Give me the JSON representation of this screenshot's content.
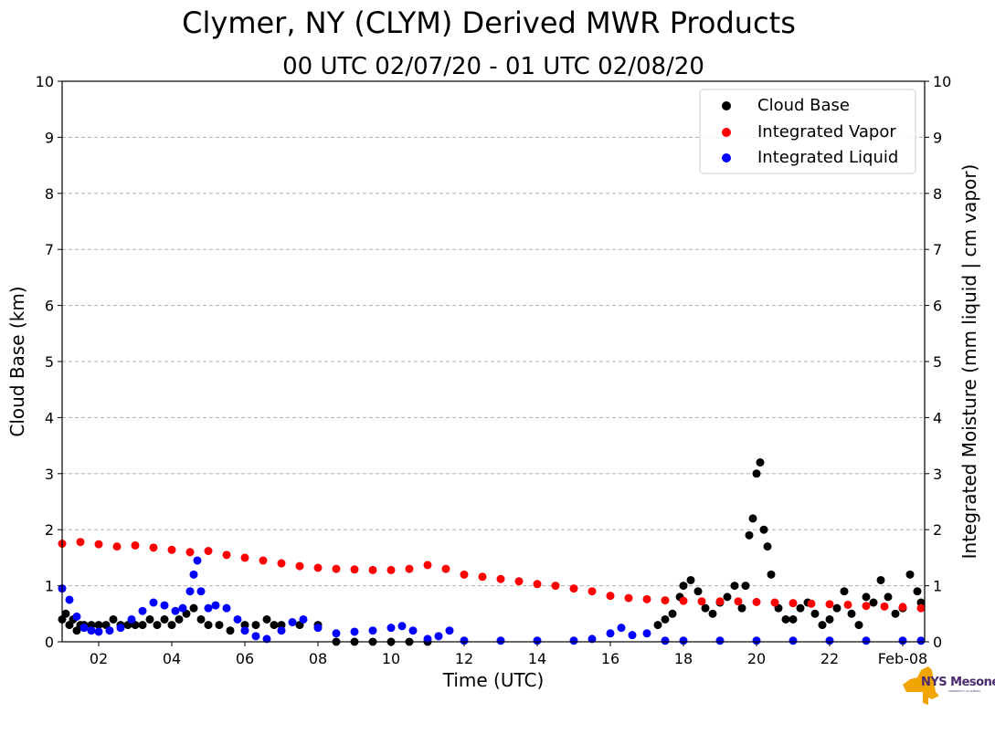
{
  "chart_data": {
    "type": "scatter",
    "title": "Clymer, NY (CLYM) Derived MWR Products",
    "subtitle": "00 UTC 02/07/20 - 01 UTC 02/08/20",
    "xlabel": "Time (UTC)",
    "ylabel_left": "Cloud Base (km)",
    "ylabel_right": "Integrated Moisture (mm liquid | cm vapor)",
    "x_tick_labels": [
      "02",
      "04",
      "06",
      "08",
      "10",
      "12",
      "14",
      "16",
      "18",
      "20",
      "22",
      "Feb-08"
    ],
    "x_tick_hours": [
      2,
      4,
      6,
      8,
      10,
      12,
      14,
      16,
      18,
      20,
      22,
      24
    ],
    "xlim_hours": [
      1,
      24.6
    ],
    "ylim_left": [
      0,
      10
    ],
    "ylim_right": [
      0,
      10
    ],
    "y_ticks": [
      0,
      1,
      2,
      3,
      4,
      5,
      6,
      7,
      8,
      9,
      10
    ],
    "grid": "horizontal dashed",
    "legend_position": "top-right",
    "series": [
      {
        "name": "Cloud Base",
        "color": "#000000",
        "x": [
          1.0,
          1.1,
          1.2,
          1.3,
          1.4,
          1.5,
          1.6,
          1.8,
          2.0,
          2.2,
          2.4,
          2.6,
          2.8,
          3.0,
          3.2,
          3.4,
          3.6,
          3.8,
          4.0,
          4.2,
          4.4,
          4.6,
          4.8,
          5.0,
          5.3,
          5.6,
          6.0,
          6.3,
          6.6,
          6.8,
          7.0,
          7.5,
          8.0,
          8.5,
          9.0,
          9.5,
          10.0,
          10.5,
          11.0,
          17.3,
          17.5,
          17.7,
          17.9,
          18.0,
          18.2,
          18.4,
          18.6,
          18.8,
          19.0,
          19.2,
          19.4,
          19.6,
          19.7,
          19.8,
          19.9,
          20.0,
          20.1,
          20.2,
          20.3,
          20.4,
          20.6,
          20.8,
          21.0,
          21.2,
          21.4,
          21.6,
          21.8,
          22.0,
          22.2,
          22.4,
          22.6,
          22.8,
          23.0,
          23.2,
          23.4,
          23.6,
          23.8,
          24.0,
          24.2,
          24.4,
          24.5
        ],
        "values": [
          0.4,
          0.5,
          0.3,
          0.4,
          0.2,
          0.3,
          0.3,
          0.3,
          0.3,
          0.3,
          0.4,
          0.3,
          0.3,
          0.3,
          0.3,
          0.4,
          0.3,
          0.4,
          0.3,
          0.4,
          0.5,
          0.6,
          0.4,
          0.3,
          0.3,
          0.2,
          0.3,
          0.3,
          0.4,
          0.3,
          0.3,
          0.3,
          0.3,
          0.0,
          0.0,
          0.0,
          0.0,
          0.0,
          0.0,
          0.3,
          0.4,
          0.5,
          0.8,
          1.0,
          1.1,
          0.9,
          0.6,
          0.5,
          0.7,
          0.8,
          1.0,
          0.6,
          1.0,
          1.9,
          2.2,
          3.0,
          3.2,
          2.0,
          1.7,
          1.2,
          0.6,
          0.4,
          0.4,
          0.6,
          0.7,
          0.5,
          0.3,
          0.4,
          0.6,
          0.9,
          0.5,
          0.3,
          0.8,
          0.7,
          1.1,
          0.8,
          0.5,
          0.6,
          1.2,
          0.9,
          0.7
        ]
      },
      {
        "name": "Integrated Vapor",
        "color": "#ff0000",
        "x": [
          1.0,
          1.5,
          2.0,
          2.5,
          3.0,
          3.5,
          4.0,
          4.5,
          5.0,
          5.5,
          6.0,
          6.5,
          7.0,
          7.5,
          8.0,
          8.5,
          9.0,
          9.5,
          10.0,
          10.5,
          11.0,
          11.5,
          12.0,
          12.5,
          13.0,
          13.5,
          14.0,
          14.5,
          15.0,
          15.5,
          16.0,
          16.5,
          17.0,
          17.5,
          18.0,
          18.5,
          19.0,
          19.5,
          20.0,
          20.5,
          21.0,
          21.5,
          22.0,
          22.5,
          23.0,
          23.5,
          24.0,
          24.5
        ],
        "values": [
          1.75,
          1.78,
          1.74,
          1.7,
          1.72,
          1.68,
          1.64,
          1.6,
          1.62,
          1.55,
          1.5,
          1.45,
          1.4,
          1.35,
          1.32,
          1.3,
          1.29,
          1.28,
          1.28,
          1.3,
          1.37,
          1.3,
          1.2,
          1.16,
          1.12,
          1.08,
          1.03,
          1.0,
          0.95,
          0.9,
          0.82,
          0.78,
          0.76,
          0.74,
          0.73,
          0.72,
          0.72,
          0.72,
          0.71,
          0.7,
          0.69,
          0.68,
          0.67,
          0.66,
          0.64,
          0.63,
          0.62,
          0.6
        ]
      },
      {
        "name": "Integrated Liquid",
        "color": "#0000ff",
        "x": [
          1.0,
          1.2,
          1.4,
          1.6,
          1.8,
          2.0,
          2.3,
          2.6,
          2.9,
          3.2,
          3.5,
          3.8,
          4.1,
          4.3,
          4.5,
          4.6,
          4.7,
          4.8,
          5.0,
          5.2,
          5.5,
          5.8,
          6.0,
          6.3,
          6.6,
          7.0,
          7.3,
          7.6,
          8.0,
          8.5,
          9.0,
          9.5,
          10.0,
          10.3,
          10.6,
          11.0,
          11.3,
          11.6,
          12.0,
          13.0,
          14.0,
          15.0,
          15.5,
          16.0,
          16.3,
          16.6,
          17.0,
          17.5,
          18.0,
          19.0,
          20.0,
          21.0,
          22.0,
          23.0,
          24.0,
          24.5
        ],
        "values": [
          0.95,
          0.75,
          0.45,
          0.25,
          0.2,
          0.18,
          0.2,
          0.25,
          0.4,
          0.55,
          0.7,
          0.65,
          0.55,
          0.6,
          0.9,
          1.2,
          1.45,
          0.9,
          0.6,
          0.65,
          0.6,
          0.4,
          0.2,
          0.1,
          0.05,
          0.2,
          0.35,
          0.4,
          0.25,
          0.15,
          0.18,
          0.2,
          0.25,
          0.28,
          0.2,
          0.05,
          0.1,
          0.2,
          0.02,
          0.02,
          0.02,
          0.02,
          0.05,
          0.15,
          0.25,
          0.12,
          0.15,
          0.02,
          0.02,
          0.02,
          0.02,
          0.02,
          0.02,
          0.02,
          0.02,
          0.02
        ]
      }
    ]
  },
  "logo": {
    "text": "NYS Mesonet",
    "subtext": "UNIVERSITY AT ALBANY"
  }
}
